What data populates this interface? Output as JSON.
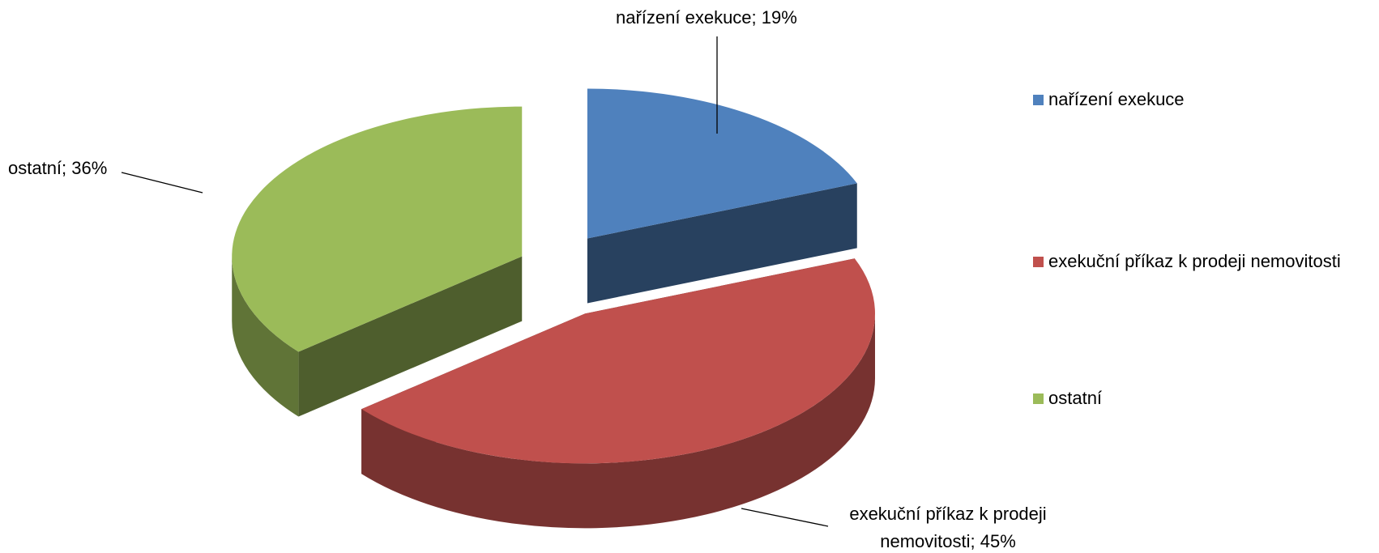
{
  "chart_data": {
    "type": "pie3d",
    "categories": [
      "nařízení exekuce",
      "exekuční příkaz k prodeji nemovitosti",
      "ostatní"
    ],
    "values": [
      19,
      45,
      36
    ],
    "value_labels": [
      "nařízení exekuce; 19%",
      "exekuční příkaz k prodeji nemovitosti; 45%",
      "ostatní; 36%"
    ],
    "colors": [
      "#4f81bd",
      "#c0504d",
      "#9bbb59"
    ],
    "legend": "right"
  }
}
